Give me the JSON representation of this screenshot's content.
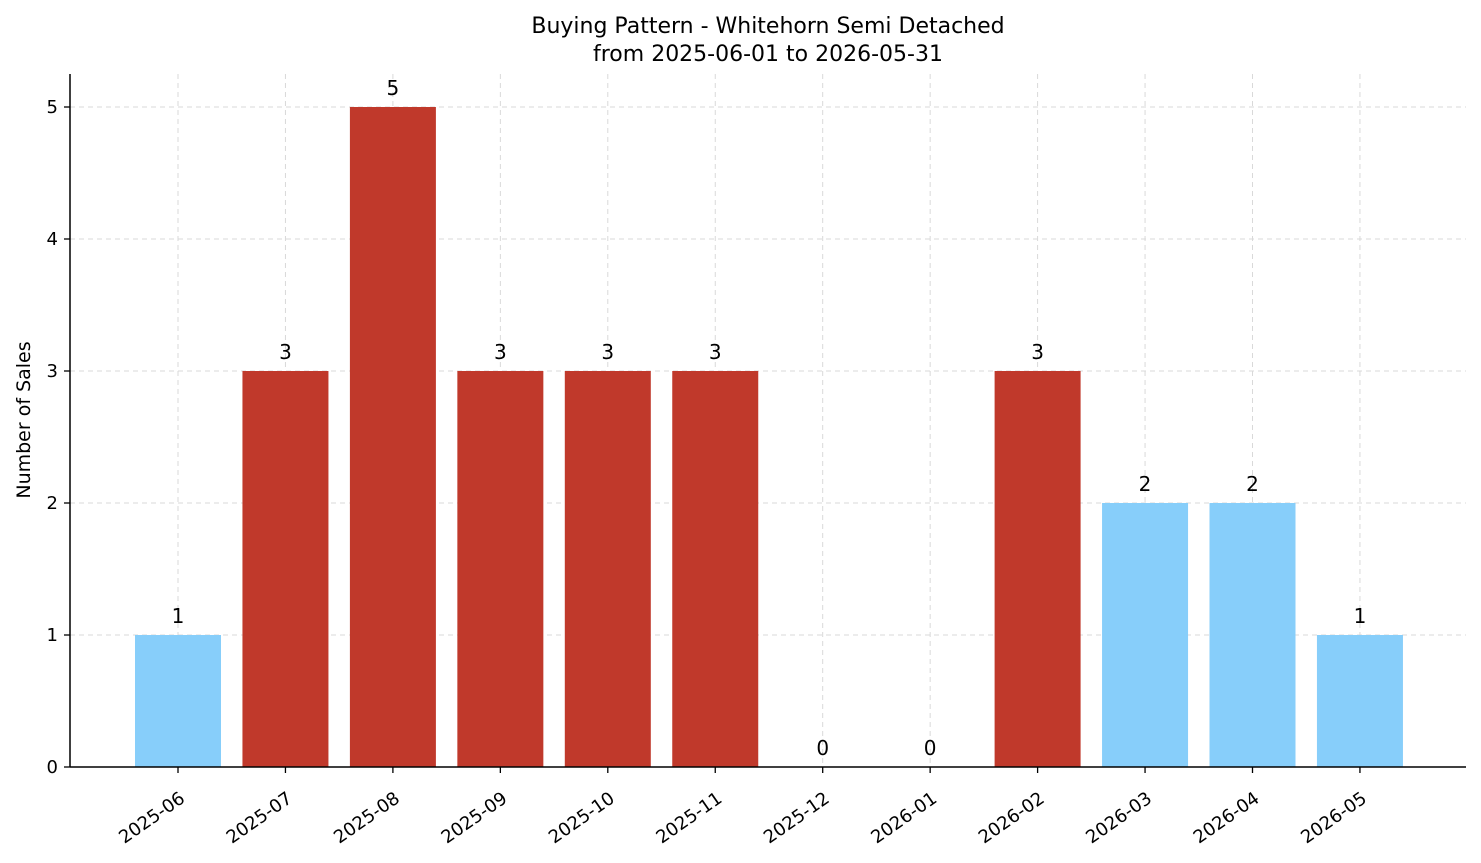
{
  "chart_data": {
    "type": "bar",
    "title": "Buying Pattern - Whitehorn Semi Detached",
    "subtitle": "from 2025-06-01 to 2026-05-31",
    "xlabel": "",
    "ylabel": "Number of Sales",
    "categories": [
      "2025-06",
      "2025-07",
      "2025-08",
      "2025-09",
      "2025-10",
      "2025-11",
      "2025-12",
      "2026-01",
      "2026-02",
      "2026-03",
      "2026-04",
      "2026-05"
    ],
    "values": [
      1,
      3,
      5,
      3,
      3,
      3,
      0,
      0,
      3,
      2,
      2,
      1
    ],
    "bar_colors": [
      "#87cefa",
      "#c0392b",
      "#c0392b",
      "#c0392b",
      "#c0392b",
      "#c0392b",
      "#c0392b",
      "#c0392b",
      "#c0392b",
      "#87cefa",
      "#87cefa",
      "#87cefa"
    ],
    "yticks": [
      0,
      1,
      2,
      3,
      4,
      5
    ],
    "ytick_labels": [
      "0",
      "1",
      "2",
      "3",
      "4",
      "5"
    ],
    "ylim": [
      0,
      5.25
    ],
    "grid": true,
    "show_data_labels": true
  }
}
